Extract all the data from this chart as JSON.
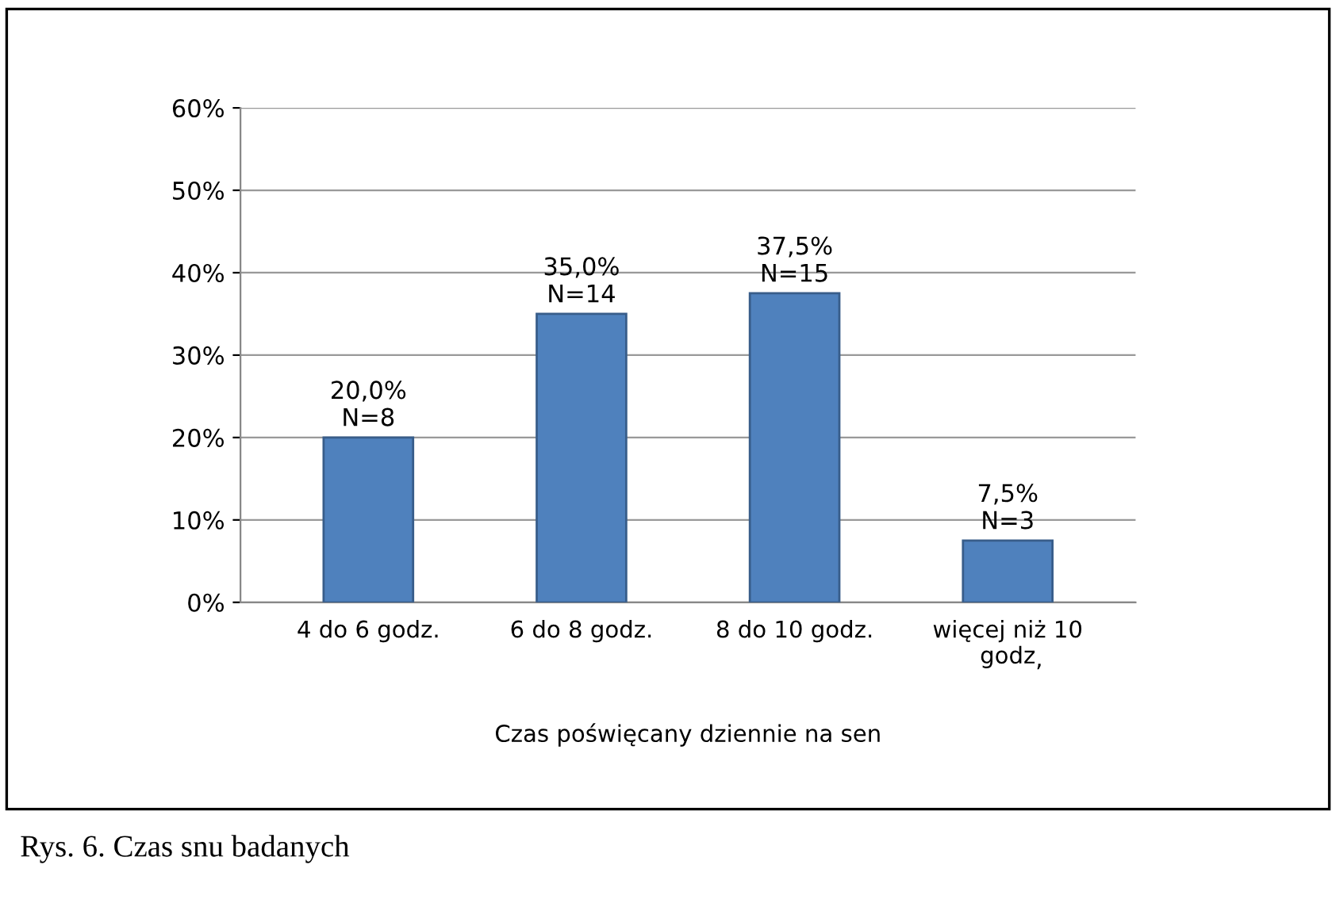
{
  "chart_data": {
    "type": "bar",
    "categories": [
      "4 do 6 godz.",
      "6 do 8 godz.",
      "8 do 10 godz.",
      "więcej niż 10\ngodz"
    ],
    "values": [
      20.0,
      35.0,
      37.5,
      7.5
    ],
    "value_labels": [
      "20,0%\nN=8",
      "35,0%\nN=14",
      "37,5%\nN=15",
      "7,5%\nN=3"
    ],
    "color": "#4f81bd",
    "xlabel": "Czas poświęcany dziennie na sen",
    "ylim": [
      0,
      60
    ],
    "yticks": [
      {
        "value": 0,
        "label": "0%"
      },
      {
        "value": 10,
        "label": "10%"
      },
      {
        "value": 20,
        "label": "20%"
      },
      {
        "value": 30,
        "label": "30%"
      },
      {
        "value": 40,
        "label": "40%"
      },
      {
        "value": 50,
        "label": "50%"
      },
      {
        "value": 60,
        "label": "60%"
      }
    ],
    "grid": "y",
    "legend": false,
    "annotations": [
      "Rys. 6. Czas snu badanych",
      ","
    ]
  }
}
